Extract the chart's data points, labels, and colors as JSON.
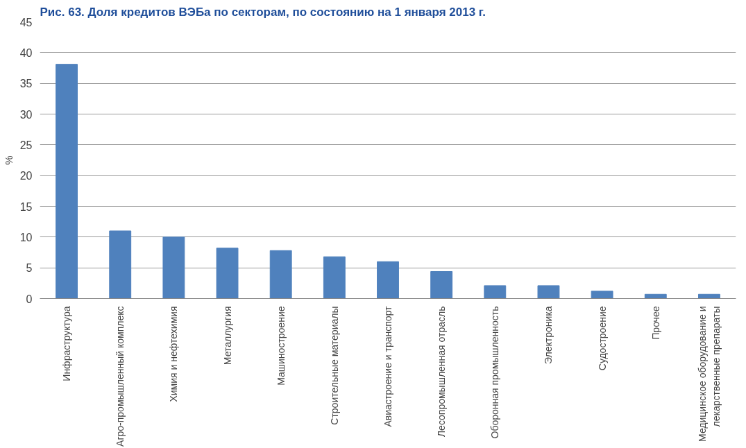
{
  "chart_data": {
    "type": "bar",
    "title": "Рис. 63. Доля кредитов ВЭБа по секторам, по состоянию на 1 января 2013 г.",
    "ylabel": "%",
    "categories": [
      "Инфраструктура",
      "Агро-промышленный комплекс",
      "Химия и нефтехимия",
      "Металлургия",
      "Машиностроение",
      "Строительные материалы",
      "Авиастроение и транспорт",
      "Лесопромышленная отрасль",
      "Оборонная промышленность",
      "Электроника",
      "Судостроение",
      "Прочее",
      "Медицинское оборудование и\nлекарственные препараты"
    ],
    "values": [
      38.1,
      11.0,
      10.0,
      8.2,
      7.8,
      6.8,
      6.0,
      4.4,
      2.1,
      2.1,
      1.2,
      0.7,
      0.7
    ],
    "color": "#4f81bd",
    "ylim": [
      0,
      45
    ],
    "yticks": [
      0,
      5,
      10,
      15,
      20,
      25,
      30,
      35,
      40,
      45
    ],
    "grid": "y"
  }
}
